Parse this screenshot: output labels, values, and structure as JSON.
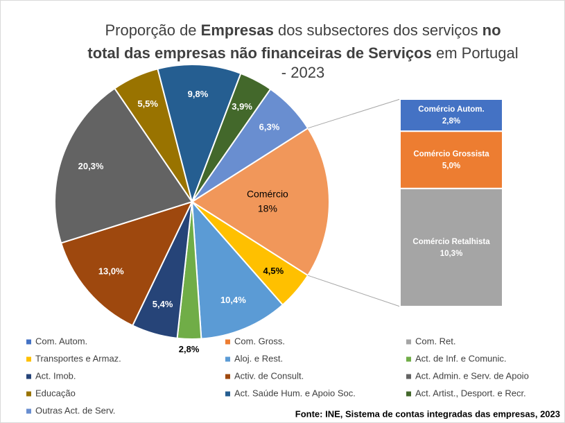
{
  "chart_data": {
    "type": "pie",
    "title_lines": [
      [
        {
          "text": "Proporção de ",
          "bold": false
        },
        {
          "text": "Empresas",
          "bold": true
        },
        {
          "text": " dos subsectores dos serviços ",
          "bold": false
        },
        {
          "text": "no",
          "bold": true
        }
      ],
      [
        {
          "text": "total das empresas não financeiras de Serviços",
          "bold": true
        },
        {
          "text": " em Portugal",
          "bold": false
        }
      ],
      [
        {
          "text": "- 2023",
          "bold": false
        }
      ]
    ],
    "categories": [
      "Comércio",
      "Transportes e Armaz.",
      "Aloj. e Rest.",
      "Act. de Inf. e Comunic.",
      "Act. Imob.",
      "Activ. de Consult.",
      "Act. Admin. e Serv. de Apoio",
      "Educação",
      "Act. Saúde Hum. e Apoio Soc.",
      "Act. Artist., Desport. e Recr.",
      "Outras Act. de Serv."
    ],
    "values": [
      18,
      4.5,
      10.4,
      2.8,
      5.4,
      13.0,
      20.3,
      5.5,
      9.8,
      3.9,
      6.3
    ],
    "value_labels": [
      "18%",
      "4,5%",
      "10,4%",
      "2,8%",
      "5,4%",
      "13,0%",
      "20,3%",
      "5,5%",
      "9,8%",
      "3,9%",
      "6,3%"
    ],
    "colors": [
      "#f1975a",
      "#ffc000",
      "#5b9bd5",
      "#70ad47",
      "#264478",
      "#9e480e",
      "#636363",
      "#997300",
      "#255e91",
      "#43682b",
      "#698ed0"
    ],
    "bar": {
      "categories": [
        "Comércio Autom.",
        "Comércio  Grossista",
        "Comércio Retalhista"
      ],
      "legend_names": [
        "Com. Autom.",
        "Com. Gross.",
        "Com. Ret."
      ],
      "values": [
        2.8,
        5.0,
        10.3
      ],
      "value_labels": [
        "2,8%",
        "5,0%",
        "10,3%"
      ],
      "colors": [
        "#4472c4",
        "#ed7d31",
        "#a5a5a5"
      ]
    },
    "source": "Fonte: INE, Sistema de contas integradas das empresas, 2023"
  }
}
